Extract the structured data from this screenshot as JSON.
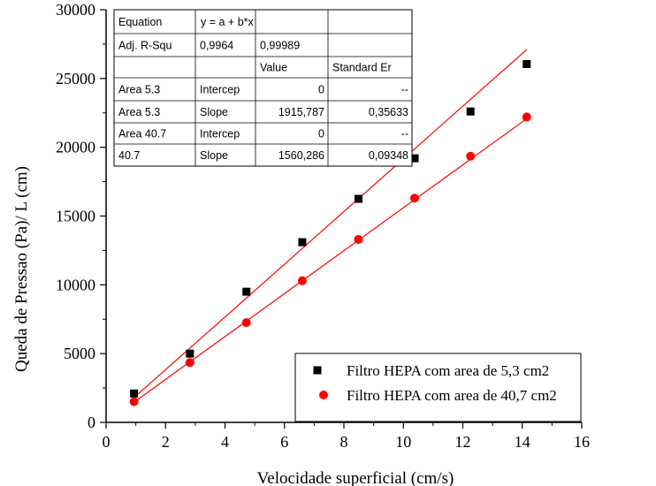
{
  "chart_data": {
    "type": "scatter",
    "xlabel": "Velocidade superficial (cm/s)",
    "ylabel": "Queda de Pressao (Pa)/ L (cm)",
    "xlim": [
      0,
      16
    ],
    "ylim": [
      0,
      30000
    ],
    "xticks": [
      0,
      2,
      4,
      6,
      8,
      10,
      12,
      14,
      16
    ],
    "yticks": [
      0,
      5000,
      10000,
      15000,
      20000,
      25000,
      30000
    ],
    "grid": false,
    "legend_position": "bottom-right",
    "series": [
      {
        "name": "Filtro HEPA com area de 5,3 cm2",
        "marker": "square",
        "color": "#000000",
        "x": [
          0.94,
          2.82,
          4.72,
          6.6,
          8.49,
          10.38,
          12.26,
          14.15
        ],
        "y": [
          2100,
          5000,
          9500,
          13100,
          16250,
          19200,
          22600,
          26050
        ]
      },
      {
        "name": "Filtro HEPA com area de 40,7 cm2",
        "marker": "circle",
        "color": "#ff0000",
        "x": [
          0.94,
          2.82,
          4.72,
          6.6,
          8.49,
          10.38,
          12.26,
          14.15
        ],
        "y": [
          1500,
          4350,
          7250,
          10300,
          13300,
          16300,
          19350,
          22200
        ]
      }
    ],
    "fit_lines": [
      {
        "intercept": 0,
        "slope": 1915.787,
        "x_range": [
          0.94,
          14.15
        ],
        "color": "#ff0000"
      },
      {
        "intercept": 0,
        "slope": 1560.286,
        "x_range": [
          0.94,
          14.15
        ],
        "color": "#ff0000"
      }
    ],
    "fit_table": {
      "rows": [
        [
          "Equation",
          "y = a + b*x",
          "",
          ""
        ],
        [
          "Adj. R-Squ",
          "0,9964",
          "0,99989",
          ""
        ],
        [
          "",
          "",
          "Value",
          "Standard Er"
        ],
        [
          "Area 5.3",
          "Intercep",
          "0",
          "--"
        ],
        [
          "Area 5.3",
          "Slope",
          "1915,787",
          "0,35633"
        ],
        [
          "Area 40.7",
          "Intercep",
          "0",
          "--"
        ],
        [
          "40.7",
          "Slope",
          "1560,286",
          "0,09348"
        ]
      ]
    }
  }
}
